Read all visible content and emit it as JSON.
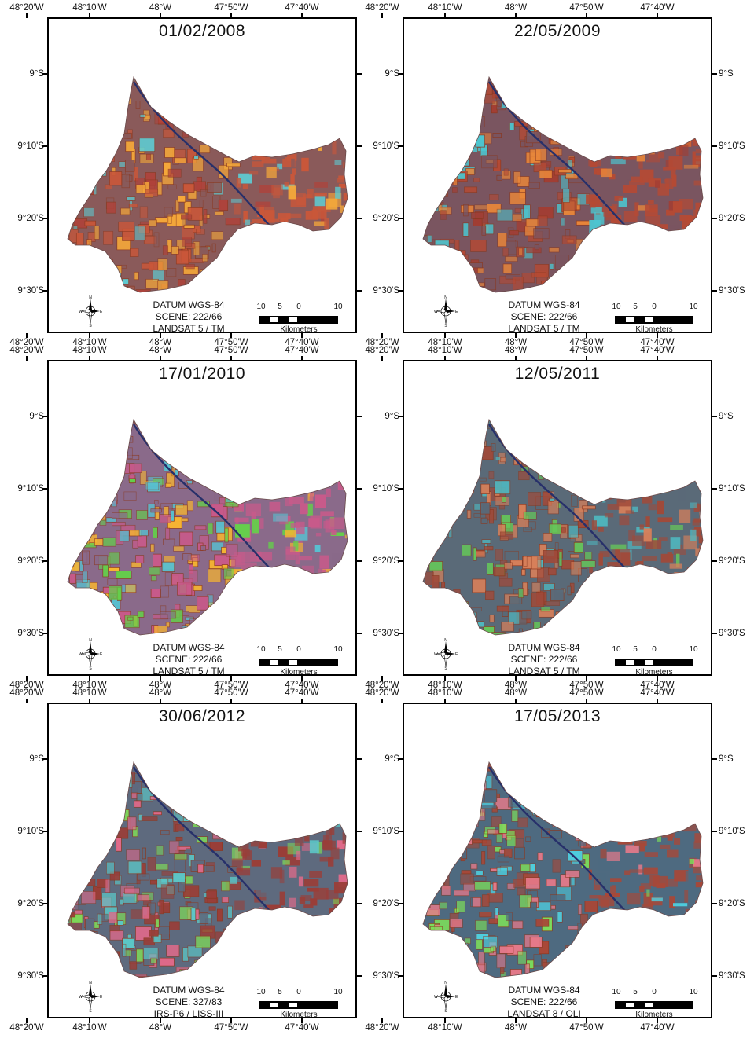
{
  "figure": {
    "lon_labels": [
      "48°20'W",
      "48°10'W",
      "48°W",
      "47°50'W",
      "47°40'W"
    ],
    "lat_labels": [
      "9°S",
      "9°10'S",
      "9°20'S",
      "9°30'S"
    ],
    "scale_numbers": [
      "10",
      "5",
      "0",
      "10"
    ],
    "scale_unit": "Kilometers",
    "compass": {
      "n": "N",
      "s": "S",
      "e": "E",
      "w": "W"
    }
  },
  "panels": [
    {
      "date": "01/02/2008",
      "datum": "DATUM WGS-84",
      "scene": "SCENE: 222/66",
      "sensor": "LANDSAT 5 / TM",
      "palette": {
        "base": "#8a5a5a",
        "crop": "#f5a83a",
        "soil": "#c9573a",
        "water": "#5ecbd2",
        "veg": "#b0423a"
      }
    },
    {
      "date": "22/05/2009",
      "datum": "DATUM WGS-84",
      "scene": "SCENE: 222/66",
      "sensor": "LANDSAT 5 / TM",
      "palette": {
        "base": "#7a5560",
        "crop": "#e8863a",
        "soil": "#b54a34",
        "water": "#4cc6d0",
        "veg": "#a23e34"
      }
    },
    {
      "date": "17/01/2010",
      "datum": "DATUM WGS-84",
      "scene": "SCENE: 222/66",
      "sensor": "LANDSAT 5 / TM",
      "palette": {
        "base": "#8a6a8a",
        "crop": "#f7b531",
        "soil": "#c85a8a",
        "water": "#58c0d0",
        "veg": "#64d04a"
      }
    },
    {
      "date": "12/05/2011",
      "datum": "DATUM WGS-84",
      "scene": "SCENE: 222/66",
      "sensor": "LANDSAT 5 / TM",
      "palette": {
        "base": "#5a6a78",
        "crop": "#d8805a",
        "soil": "#a04a3a",
        "water": "#4fb8c0",
        "veg": "#66c85a"
      }
    },
    {
      "date": "30/06/2012",
      "datum": "DATUM WGS-84",
      "scene": "SCENE: 327/83",
      "sensor": "IRS-P6 / LISS-III",
      "palette": {
        "base": "#5e6a7e",
        "crop": "#e06a8a",
        "soil": "#9a3e38",
        "water": "#5cc8c8",
        "veg": "#7ed85a"
      }
    },
    {
      "date": "17/05/2013",
      "datum": "DATUM WGS-84",
      "scene": "SCENE: 222/66",
      "sensor": "LANDSAT 8 / OLI",
      "palette": {
        "base": "#4e6a80",
        "crop": "#e87a8a",
        "soil": "#a84838",
        "water": "#4fd0e0",
        "veg": "#7ee05a"
      }
    }
  ]
}
